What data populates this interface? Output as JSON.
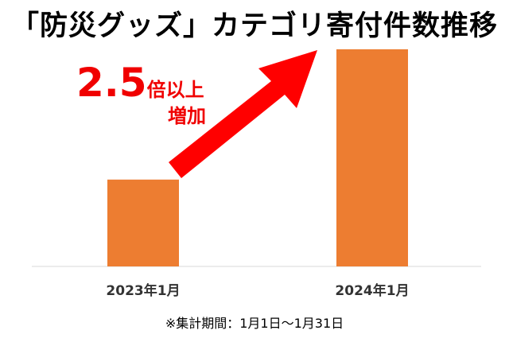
{
  "title": "「防災グッズ」カテゴリ寄付件数推移",
  "annotation": {
    "multiplier": "2.5",
    "suffix": "倍以上",
    "second_line": "増加"
  },
  "footnote": "※集計期間：1月1日～1月31日",
  "colors": {
    "bar": "#ed7d31",
    "arrow": "#ff0000",
    "axis": "#d9d9d9",
    "text": "#000000"
  },
  "chart_data": {
    "type": "bar",
    "title": "「防災グッズ」カテゴリ寄付件数推移",
    "categories": [
      "2023年1月",
      "2024年1月"
    ],
    "values": [
      1,
      2.5
    ],
    "xlabel": "",
    "ylabel": "",
    "grid": false,
    "legend": "none",
    "annotation": "2.5倍以上増加",
    "y_axis_labels_shown": false
  }
}
